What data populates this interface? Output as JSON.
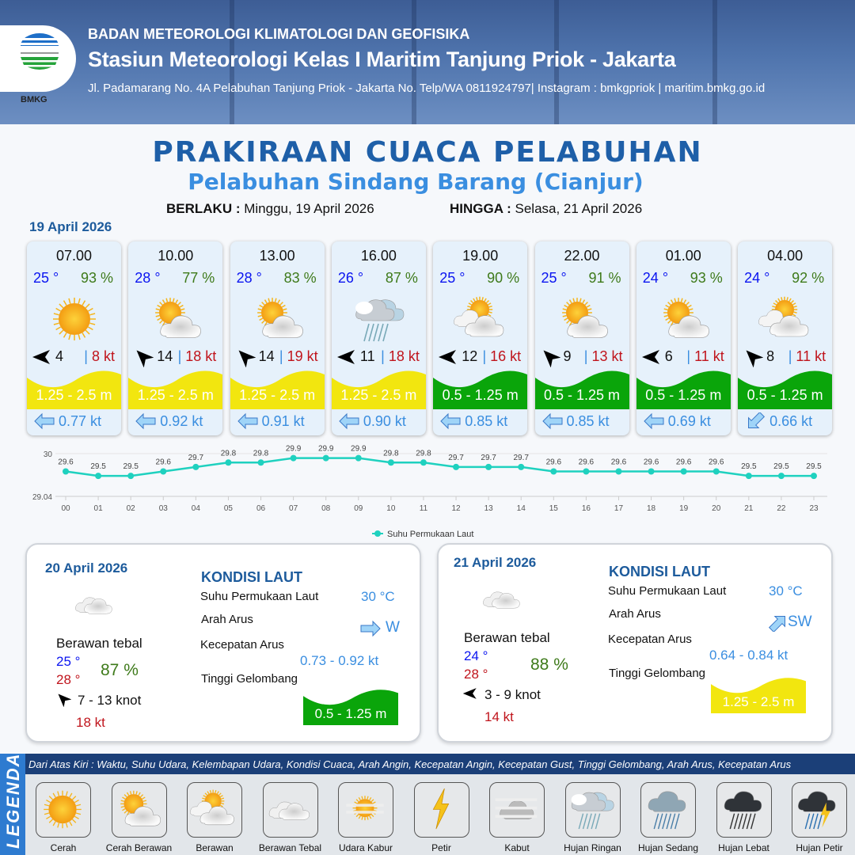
{
  "header": {
    "agency": "BADAN METEOROLOGI KLIMATOLOGI DAN GEOFISIKA",
    "station": "Stasiun Meteorologi Kelas I Maritim Tanjung Priok - Jakarta",
    "address": "Jl. Padamarang No. 4A Pelabuhan Tanjung Priok - Jakarta No. Telp/WA 0811924797| Instagram : bmkgpriok | maritim.bmkg.go.id",
    "logo_text": "BMKG"
  },
  "title": "PRAKIRAAN CUACA PELABUHAN",
  "subtitle": "Pelabuhan Sindang Barang (Cianjur)",
  "period": {
    "from_label": "BERLAKU :",
    "from": "Minggu, 19 April 2026",
    "to_label": "HINGGA :",
    "to": "Selasa, 21 April 2026"
  },
  "today_date": "19 April 2026",
  "colors": {
    "wave_yellow": "#f2e60f",
    "wave_green": "#0aa50a",
    "temp": "#0a14f0",
    "humidity": "#3e7a1a",
    "gust": "#c0141c",
    "current": "#3a8ee0",
    "line": "#1fd1bf"
  },
  "hourly": [
    {
      "time": "07.00",
      "temp": "25 °",
      "rh": "93 %",
      "icon": "cerah",
      "wind_dir": "E",
      "wind": "4",
      "gust": "8 kt",
      "wave": "1.25 - 2.5 m",
      "wave_color": "yellow",
      "cur_dir": "E",
      "current": "0.77 kt"
    },
    {
      "time": "10.00",
      "temp": "28 °",
      "rh": "77 %",
      "icon": "cerah-berawan",
      "wind_dir": "SE",
      "wind": "14",
      "gust": "18 kt",
      "wave": "1.25 - 2.5 m",
      "wave_color": "yellow",
      "cur_dir": "E",
      "current": "0.92 kt"
    },
    {
      "time": "13.00",
      "temp": "28 °",
      "rh": "83 %",
      "icon": "cerah-berawan",
      "wind_dir": "SE",
      "wind": "14",
      "gust": "19 kt",
      "wave": "1.25 - 2.5 m",
      "wave_color": "yellow",
      "cur_dir": "E",
      "current": "0.91 kt"
    },
    {
      "time": "16.00",
      "temp": "26 °",
      "rh": "87 %",
      "icon": "hujan-ringan",
      "wind_dir": "E",
      "wind": "11",
      "gust": "18 kt",
      "wave": "1.25 - 2.5 m",
      "wave_color": "yellow",
      "cur_dir": "E",
      "current": "0.90 kt"
    },
    {
      "time": "19.00",
      "temp": "25 °",
      "rh": "90 %",
      "icon": "berawan",
      "wind_dir": "E",
      "wind": "12",
      "gust": "16 kt",
      "wave": "0.5 - 1.25 m",
      "wave_color": "green",
      "cur_dir": "E",
      "current": "0.85 kt"
    },
    {
      "time": "22.00",
      "temp": "25 °",
      "rh": "91 %",
      "icon": "cerah-berawan",
      "wind_dir": "SE",
      "wind": "9",
      "gust": "13 kt",
      "wave": "0.5 - 1.25 m",
      "wave_color": "green",
      "cur_dir": "E",
      "current": "0.85 kt"
    },
    {
      "time": "01.00",
      "temp": "24 °",
      "rh": "93 %",
      "icon": "cerah-berawan",
      "wind_dir": "E",
      "wind": "6",
      "gust": "11 kt",
      "wave": "0.5 - 1.25 m",
      "wave_color": "green",
      "cur_dir": "E",
      "current": "0.69 kt"
    },
    {
      "time": "04.00",
      "temp": "24 °",
      "rh": "92 %",
      "icon": "berawan",
      "wind_dir": "SE",
      "wind": "8",
      "gust": "11 kt",
      "wave": "0.5 - 1.25 m",
      "wave_color": "green",
      "cur_dir": "NE",
      "current": "0.66 kt"
    }
  ],
  "chart_data": {
    "type": "line",
    "categories": [
      "00",
      "01",
      "02",
      "03",
      "04",
      "05",
      "06",
      "07",
      "08",
      "09",
      "10",
      "11",
      "12",
      "13",
      "14",
      "15",
      "16",
      "17",
      "18",
      "19",
      "20",
      "21",
      "22",
      "23"
    ],
    "series": [
      {
        "name": "Suhu Permukaan Laut",
        "values": [
          29.6,
          29.5,
          29.5,
          29.6,
          29.7,
          29.8,
          29.8,
          29.9,
          29.9,
          29.9,
          29.8,
          29.8,
          29.7,
          29.7,
          29.7,
          29.6,
          29.6,
          29.6,
          29.6,
          29.6,
          29.6,
          29.5,
          29.5,
          29.5
        ]
      }
    ],
    "yticks": [
      "30",
      "29.04"
    ],
    "ylim": [
      29.04,
      30
    ],
    "legend": "bottom",
    "grid": false
  },
  "days": [
    {
      "date": "20 April 2026",
      "condition": "Berawan tebal",
      "tmin": "25 °",
      "tmax": "28 °",
      "rh": "87 %",
      "wind_dir": "SE",
      "wind": "7  - 13 knot",
      "gust": "18 kt",
      "kondisi": "KONDISI LAUT",
      "sst_label": "Suhu Permukaan Laut",
      "sst": "30 °C",
      "cur_dir_label": "Arah Arus",
      "cur_dir": "W",
      "cur_speed_label": "Kecepatan Arus",
      "cur_speed": "0.73  - 0.92 kt",
      "wave_label": "Tinggi Gelombang",
      "wave": "0.5 - 1.25 m",
      "wave_color": "green"
    },
    {
      "date": "21 April 2026",
      "condition": "Berawan tebal",
      "tmin": "24 °",
      "tmax": "28 °",
      "rh": "88 %",
      "wind_dir": "E",
      "wind": "3  - 9 knot",
      "gust": "14 kt",
      "kondisi": "KONDISI LAUT",
      "sst_label": "Suhu Permukaan Laut",
      "sst": "30 °C",
      "cur_dir_label": "Arah Arus",
      "cur_dir": "SW",
      "cur_speed_label": "Kecepatan Arus",
      "cur_speed": "0.64  - 0.84 kt",
      "wave_label": "Tinggi Gelombang",
      "wave": "1.25 - 2.5 m",
      "wave_color": "yellow"
    }
  ],
  "legend": {
    "title": "LEGENDA",
    "description": "Dari Atas Kiri : Waktu, Suhu Udara, Kelembapan Udara, Kondisi Cuaca, Arah Angin, Kecepatan Angin, Kecepatan Gust, Tinggi Gelombang, Arah Arus, Kecepatan Arus",
    "items": [
      {
        "label": "Cerah",
        "icon": "cerah"
      },
      {
        "label": "Cerah Berawan",
        "icon": "cerah-berawan"
      },
      {
        "label": "Berawan",
        "icon": "berawan"
      },
      {
        "label": "Berawan Tebal",
        "icon": "berawan-tebal"
      },
      {
        "label": "Udara Kabur",
        "icon": "udara-kabur"
      },
      {
        "label": "Petir",
        "icon": "petir"
      },
      {
        "label": "Kabut",
        "icon": "kabut"
      },
      {
        "label": "Hujan Ringan",
        "icon": "hujan-ringan"
      },
      {
        "label": "Hujan Sedang",
        "icon": "hujan-sedang"
      },
      {
        "label": "Hujan Lebat",
        "icon": "hujan-lebat"
      },
      {
        "label": "Hujan Petir",
        "icon": "hujan-petir"
      }
    ]
  }
}
